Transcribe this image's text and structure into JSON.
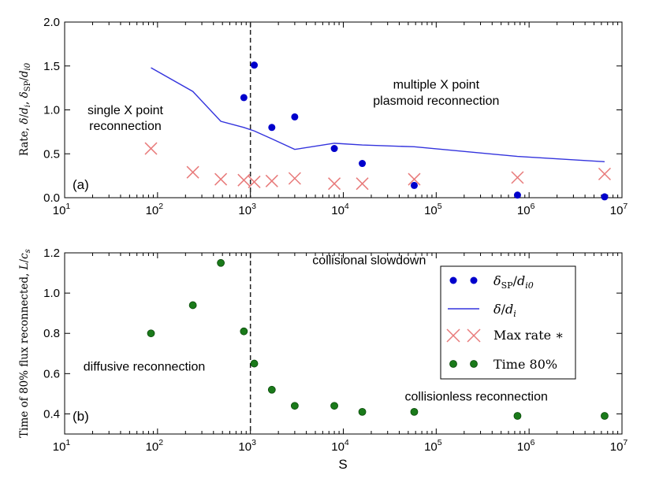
{
  "colors": {
    "dots": "#0000cc",
    "line": "#3333dd",
    "crosses": "#e87a7a",
    "green": "#1a7a1a",
    "green_edge": "#0a4a0a",
    "dashed": "#222222"
  },
  "chart_data": [
    {
      "type": "scatter",
      "panel_label": "(a)",
      "xscale": "log",
      "xlim": [
        10,
        10000000
      ],
      "ylim": [
        0,
        2.0
      ],
      "ylabel": "Rate, δ/d_i, δ_SP/d_i0",
      "ylabel_parts": {
        "a": "Rate, ",
        "b": "δ",
        "c": "/",
        "d": "d",
        "e": "i",
        "f": ",  ",
        "g": "δ",
        "h": "SP",
        "i": "/",
        "j": "d",
        "k": "i0"
      },
      "xticks": [
        {
          "base": "10",
          "exp": "1"
        },
        {
          "base": "10",
          "exp": "2"
        },
        {
          "base": "10",
          "exp": "3"
        },
        {
          "base": "10",
          "exp": "4"
        },
        {
          "base": "10",
          "exp": "5"
        },
        {
          "base": "10",
          "exp": "6"
        },
        {
          "base": "10",
          "exp": "7"
        }
      ],
      "yticks": [
        "0.0",
        "0.5",
        "1.0",
        "1.5",
        "2.0"
      ],
      "ytick_values": [
        0,
        0.5,
        1.0,
        1.5,
        2.0
      ],
      "vline_x": 1000,
      "annotations": [
        {
          "text": "single X point",
          "x": 45,
          "y": 0.95
        },
        {
          "text": "reconnection",
          "x": 45,
          "y": 0.77
        },
        {
          "text": "multiple X point",
          "x": 100000,
          "y": 1.24
        },
        {
          "text": "plasmoid reconnection",
          "x": 100000,
          "y": 1.06
        }
      ],
      "series": [
        {
          "name": "δ_SP/d_i0",
          "kind": "dots",
          "x": [
            850,
            1100,
            1700,
            3000,
            8000,
            16000,
            58000,
            750000,
            6500000
          ],
          "y": [
            1.14,
            1.51,
            0.8,
            0.92,
            0.56,
            0.39,
            0.14,
            0.03,
            0.01
          ]
        },
        {
          "name": "δ/d_i",
          "kind": "line",
          "x": [
            85,
            240,
            480,
            850,
            1100,
            1700,
            3000,
            8000,
            16000,
            58000,
            750000,
            6500000
          ],
          "y": [
            1.48,
            1.21,
            0.87,
            0.8,
            0.76,
            0.67,
            0.55,
            0.62,
            0.6,
            0.58,
            0.47,
            0.41
          ]
        },
        {
          "name": "Max rate *",
          "kind": "cross",
          "x": [
            85,
            240,
            480,
            850,
            1100,
            1700,
            3000,
            8000,
            16000,
            58000,
            750000,
            6500000
          ],
          "y": [
            0.56,
            0.29,
            0.21,
            0.2,
            0.18,
            0.19,
            0.22,
            0.16,
            0.16,
            0.21,
            0.23,
            0.27
          ]
        }
      ]
    },
    {
      "type": "scatter",
      "panel_label": "(b)",
      "xscale": "log",
      "xlim": [
        10,
        10000000
      ],
      "ylim": [
        0.3,
        1.2
      ],
      "xlabel": "S",
      "ylabel": "Time of 80% flux reconnected, L/c_s",
      "ylabel_parts": {
        "a": "Time of 80% flux reconnected,  ",
        "b": "L",
        "c": "/",
        "d": "c",
        "e": "s"
      },
      "xticks": [
        {
          "base": "10",
          "exp": "1"
        },
        {
          "base": "10",
          "exp": "2"
        },
        {
          "base": "10",
          "exp": "3"
        },
        {
          "base": "10",
          "exp": "4"
        },
        {
          "base": "10",
          "exp": "5"
        },
        {
          "base": "10",
          "exp": "6"
        },
        {
          "base": "10",
          "exp": "7"
        }
      ],
      "yticks": [
        "0.4",
        "0.6",
        "0.8",
        "1.0",
        "1.2"
      ],
      "ytick_values": [
        0.4,
        0.6,
        0.8,
        1.0,
        1.2
      ],
      "vline_x": 1000,
      "annotations": [
        {
          "text": "collisional slowdown",
          "x": 19000,
          "y": 1.143
        },
        {
          "text": "diffusive reconnection",
          "x": 72,
          "y": 0.615
        },
        {
          "text": "collisionless reconnection",
          "x": 270000,
          "y": 0.467
        }
      ],
      "series": [
        {
          "name": "Time 80%",
          "kind": "green",
          "x": [
            85,
            240,
            480,
            850,
            1100,
            1700,
            3000,
            8000,
            16000,
            58000,
            750000,
            6500000
          ],
          "y": [
            0.8,
            0.94,
            1.15,
            0.81,
            0.65,
            0.52,
            0.44,
            0.44,
            0.41,
            0.41,
            0.39,
            0.39
          ]
        }
      ],
      "legend": {
        "placement": "upper-right",
        "entries": [
          {
            "kind": "dots",
            "parts": {
              "a": "δ",
              "b": "SP",
              "c": "/",
              "d": "d",
              "e": "i0"
            }
          },
          {
            "kind": "line",
            "parts": {
              "a": "δ",
              "b": "/",
              "c": "d",
              "d": "i"
            }
          },
          {
            "kind": "cross",
            "parts": {
              "a": "Max rate ∗"
            }
          },
          {
            "kind": "green",
            "parts": {
              "a": "Time 80%"
            }
          }
        ]
      }
    }
  ]
}
